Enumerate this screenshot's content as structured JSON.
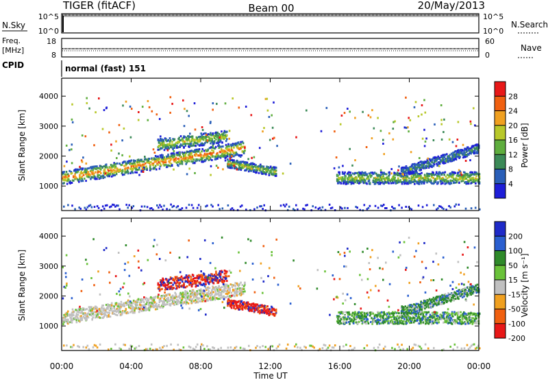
{
  "header": {
    "radar": "TIGER (fitACF)",
    "beam": "Beam 00",
    "date": "20/May/2013"
  },
  "noise_panel": {
    "left_label": "N.Sky",
    "right_label": "N.Search",
    "left_ticks": [
      "10^5",
      "10^0"
    ],
    "right_ticks": [
      "10^5",
      "10^0"
    ]
  },
  "freq_panel": {
    "left_label_1": "Freq.",
    "left_label_2": "[MHz]",
    "right_label": "Nave",
    "left_ticks": [
      "18",
      "8"
    ],
    "right_ticks": [
      "60",
      "0"
    ],
    "cpid_label": "CPID",
    "cpid_text": "normal (fast) 151"
  },
  "chart_data": [
    {
      "type": "heatmap",
      "name": "power",
      "ylabel": "Slant Range [km]",
      "ylim": [
        180,
        4600
      ],
      "yticks": [
        "1000",
        "2000",
        "3000",
        "4000"
      ],
      "colorbar_label": "Power [dB]",
      "colorbar_ticks": [
        "4",
        "8",
        "12",
        "16",
        "20",
        "24",
        "28"
      ],
      "colors": [
        "#1e1ed8",
        "#2a5fb8",
        "#3c8a58",
        "#5fae3e",
        "#b8c82a",
        "#f0a020",
        "#f06010",
        "#e81818"
      ],
      "xlim": [
        0,
        24
      ],
      "features": [
        {
          "x": [
            0,
            10.5
          ],
          "y_center": [
            1300,
            2300
          ],
          "width_km": 450,
          "intensity": "high"
        },
        {
          "x": [
            5.5,
            9.5
          ],
          "y_center": [
            2400,
            2700
          ],
          "width_km": 400,
          "intensity": "medium"
        },
        {
          "x": [
            9.5,
            12.3
          ],
          "y_center": [
            1800,
            1500
          ],
          "width_km": 300,
          "intensity": "medium"
        },
        {
          "x": [
            15.8,
            24
          ],
          "y_center": [
            1300,
            1300
          ],
          "width_km": 400,
          "intensity": "medium"
        },
        {
          "x": [
            19.5,
            24
          ],
          "y_center": [
            1500,
            2300
          ],
          "width_km": 300,
          "intensity": "low"
        }
      ]
    },
    {
      "type": "heatmap",
      "name": "velocity",
      "ylabel": "Slant Range [km]",
      "ylim": [
        180,
        4600
      ],
      "yticks": [
        "1000",
        "2000",
        "3000",
        "4000"
      ],
      "colorbar_label": "Velocity [m s⁻¹]",
      "colorbar_ticks": [
        "200",
        "100",
        "50",
        "15",
        "-15",
        "-50",
        "-100",
        "-200"
      ],
      "colors": [
        "#1e2ac8",
        "#2a5fd0",
        "#2f8a2a",
        "#6ac23a",
        "#c0c0c0",
        "#f0a020",
        "#f06010",
        "#e81818"
      ],
      "xlabel": "Time UT",
      "xticks": [
        "00:00",
        "04:00",
        "08:00",
        "12:00",
        "16:00",
        "20:00",
        "00:00"
      ],
      "xlim": [
        0,
        24
      ]
    }
  ]
}
